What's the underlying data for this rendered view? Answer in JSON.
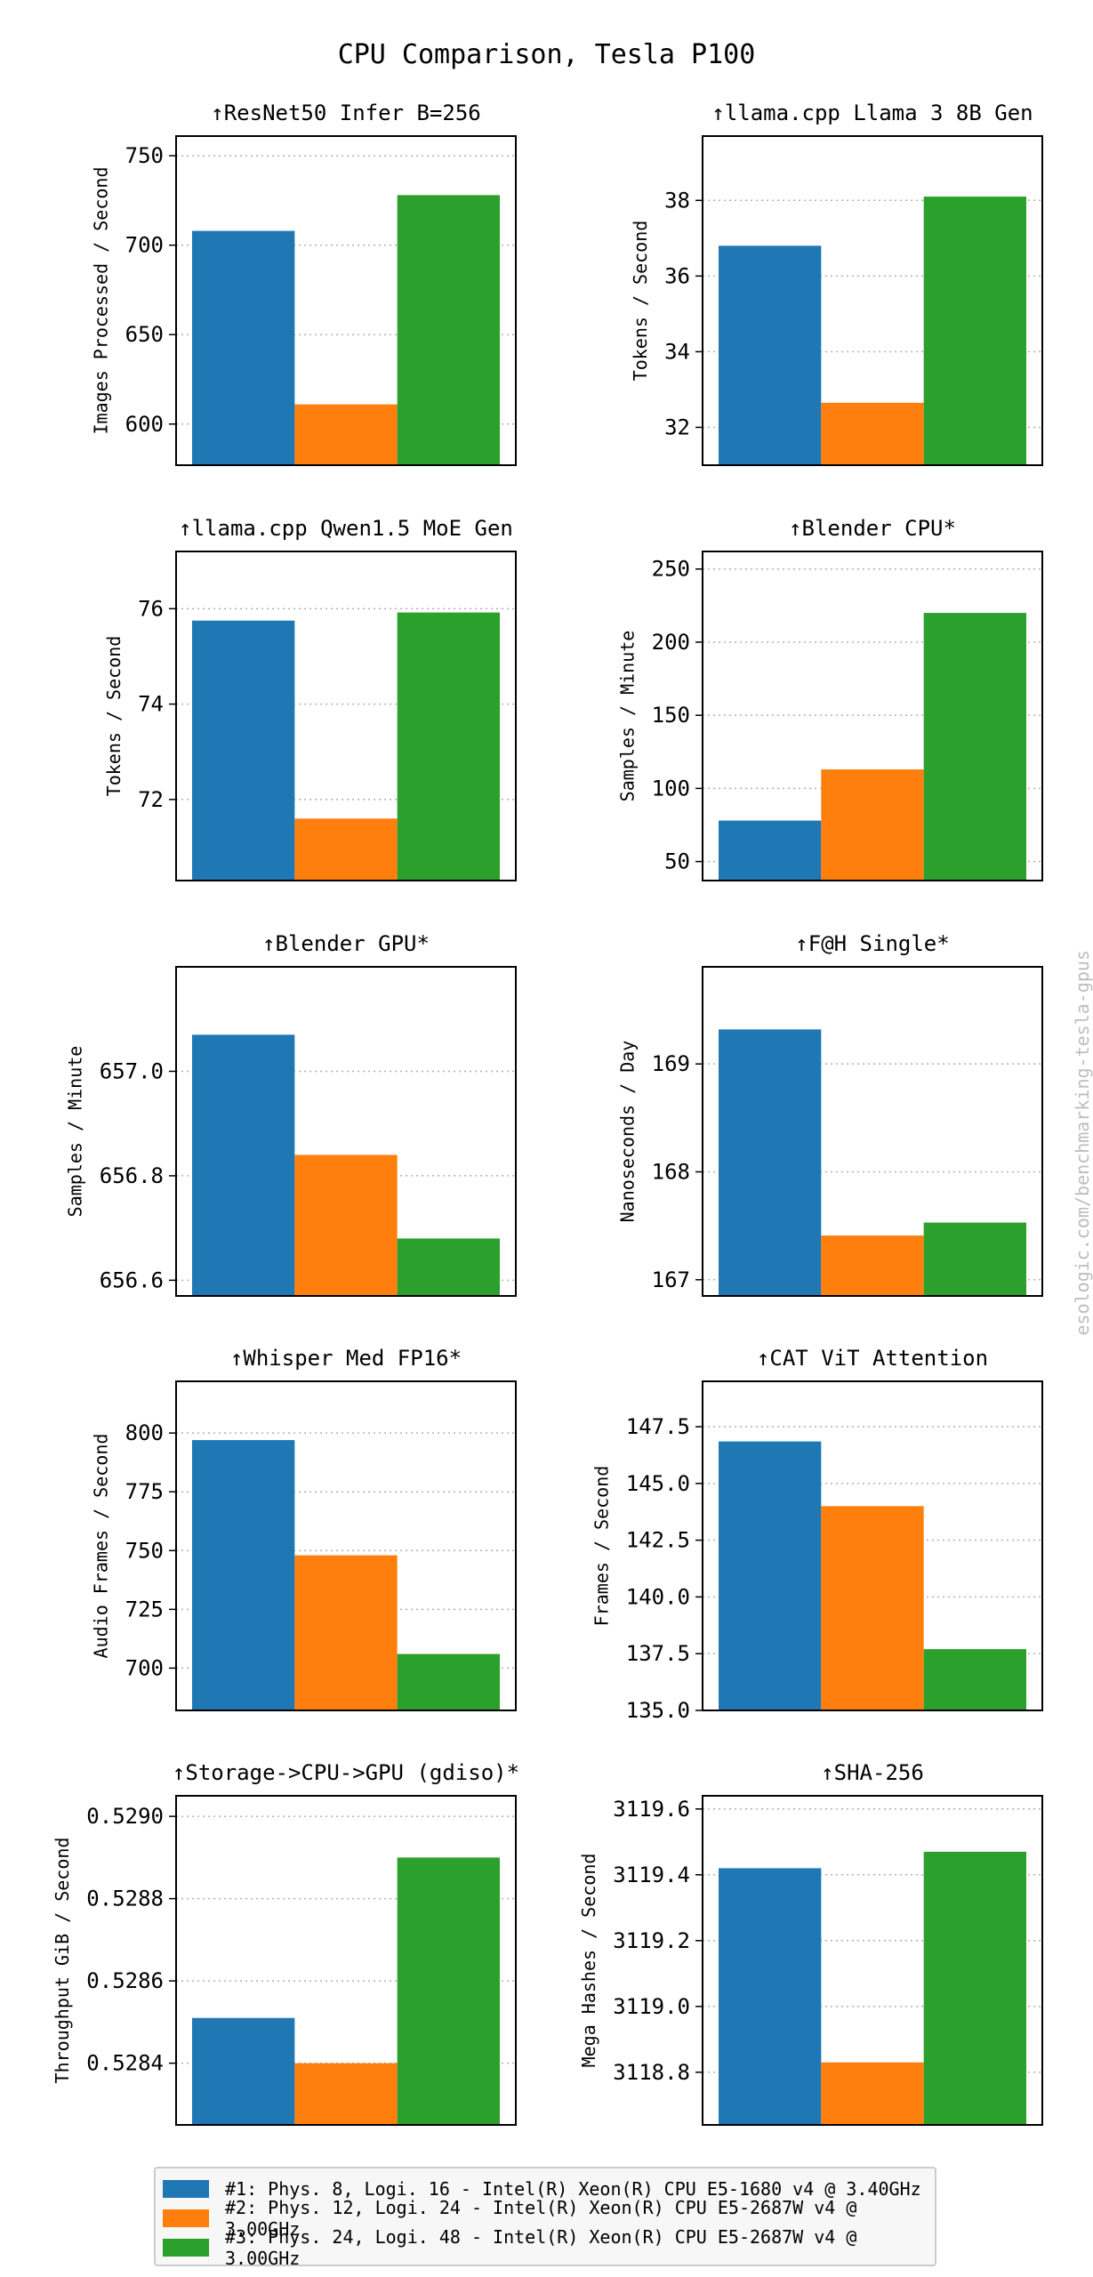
{
  "figure": {
    "title": "CPU Comparison, Tesla P100",
    "watermark": "esologic.com/benchmarking-tesla-gpus",
    "series_colors": [
      "#1f77b4",
      "#ff7f0e",
      "#2ca02c"
    ]
  },
  "legend": [
    {
      "label": "#1: Phys. 8, Logi. 16 - Intel(R) Xeon(R) CPU E5-1680 v4 @ 3.40GHz",
      "color": "#1f77b4"
    },
    {
      "label": "#2: Phys. 12, Logi. 24 - Intel(R) Xeon(R) CPU E5-2687W v4 @ 3.00GHz",
      "color": "#ff7f0e"
    },
    {
      "label": "#3: Phys. 24, Logi. 48 - Intel(R) Xeon(R) CPU E5-2687W v4 @ 3.00GHz",
      "color": "#2ca02c"
    }
  ],
  "chart_data": [
    {
      "type": "bar",
      "title": "↑ResNet50 Infer B=256",
      "ylabel": "Images Processed / Second",
      "ylim": [
        577,
        761
      ],
      "yticks": [
        600,
        650,
        700,
        750
      ],
      "tick_labels": [
        "600",
        "650",
        "700",
        "750"
      ],
      "series": [
        {
          "name": "#1",
          "values": [
            708
          ]
        },
        {
          "name": "#2",
          "values": [
            611
          ]
        },
        {
          "name": "#3",
          "values": [
            728
          ]
        }
      ]
    },
    {
      "type": "bar",
      "title": "↑llama.cpp Llama 3 8B Gen",
      "ylabel": "Tokens / Second",
      "ylim": [
        31.0,
        39.7
      ],
      "yticks": [
        32,
        34,
        36,
        38
      ],
      "tick_labels": [
        "32",
        "34",
        "36",
        "38"
      ],
      "series": [
        {
          "name": "#1",
          "values": [
            36.8
          ]
        },
        {
          "name": "#2",
          "values": [
            32.65
          ]
        },
        {
          "name": "#3",
          "values": [
            38.1
          ]
        }
      ]
    },
    {
      "type": "bar",
      "title": "↑llama.cpp Qwen1.5 MoE Gen",
      "ylabel": "Tokens / Second",
      "ylim": [
        70.3,
        77.2
      ],
      "yticks": [
        72,
        74,
        76
      ],
      "tick_labels": [
        "72",
        "74",
        "76"
      ],
      "series": [
        {
          "name": "#1",
          "values": [
            75.75
          ]
        },
        {
          "name": "#2",
          "values": [
            71.6
          ]
        },
        {
          "name": "#3",
          "values": [
            75.92
          ]
        }
      ]
    },
    {
      "type": "bar",
      "title": "↑Blender CPU*",
      "ylabel": "Samples / Minute",
      "ylim": [
        37,
        262
      ],
      "yticks": [
        50,
        100,
        150,
        200,
        250
      ],
      "tick_labels": [
        "50",
        "100",
        "150",
        "200",
        "250"
      ],
      "series": [
        {
          "name": "#1",
          "values": [
            78
          ]
        },
        {
          "name": "#2",
          "values": [
            113
          ]
        },
        {
          "name": "#3",
          "values": [
            220
          ]
        }
      ]
    },
    {
      "type": "bar",
      "title": "↑Blender GPU*",
      "ylabel": "Samples / Minute",
      "ylim": [
        656.57,
        657.2
      ],
      "yticks": [
        656.6,
        656.8,
        657.0
      ],
      "tick_labels": [
        "656.6",
        "656.8",
        "657.0"
      ],
      "series": [
        {
          "name": "#1",
          "values": [
            657.07
          ]
        },
        {
          "name": "#2",
          "values": [
            656.84
          ]
        },
        {
          "name": "#3",
          "values": [
            656.68
          ]
        }
      ]
    },
    {
      "type": "bar",
      "title": "↑F@H Single*",
      "ylabel": "Nanoseconds / Day",
      "ylim": [
        166.85,
        169.9
      ],
      "yticks": [
        167,
        168,
        169
      ],
      "tick_labels": [
        "167",
        "168",
        "169"
      ],
      "series": [
        {
          "name": "#1",
          "values": [
            169.32
          ]
        },
        {
          "name": "#2",
          "values": [
            167.41
          ]
        },
        {
          "name": "#3",
          "values": [
            167.53
          ]
        }
      ]
    },
    {
      "type": "bar",
      "title": "↑Whisper Med FP16*",
      "ylabel": "Audio Frames / Second",
      "ylim": [
        682,
        822
      ],
      "yticks": [
        700,
        725,
        750,
        775,
        800
      ],
      "tick_labels": [
        "700",
        "725",
        "750",
        "775",
        "800"
      ],
      "series": [
        {
          "name": "#1",
          "values": [
            797
          ]
        },
        {
          "name": "#2",
          "values": [
            748
          ]
        },
        {
          "name": "#3",
          "values": [
            706
          ]
        }
      ]
    },
    {
      "type": "bar",
      "title": "↑CAT ViT Attention",
      "ylabel": "Frames / Second",
      "ylim": [
        135.0,
        149.5
      ],
      "yticks": [
        135.0,
        137.5,
        140.0,
        142.5,
        145.0,
        147.5
      ],
      "tick_labels": [
        "135.0",
        "137.5",
        "140.0",
        "142.5",
        "145.0",
        "147.5"
      ],
      "series": [
        {
          "name": "#1",
          "values": [
            146.85
          ]
        },
        {
          "name": "#2",
          "values": [
            144.0
          ]
        },
        {
          "name": "#3",
          "values": [
            137.7
          ]
        }
      ]
    },
    {
      "type": "bar",
      "title": "↑Storage->CPU->GPU (gdiso)*",
      "ylabel": "Throughput GiB / Second",
      "ylim": [
        0.52825,
        0.52905
      ],
      "yticks": [
        0.5284,
        0.5286,
        0.5288,
        0.529
      ],
      "tick_labels": [
        "0.5284",
        "0.5286",
        "0.5288",
        "0.5290"
      ],
      "series": [
        {
          "name": "#1",
          "values": [
            0.52851
          ]
        },
        {
          "name": "#2",
          "values": [
            0.5284
          ]
        },
        {
          "name": "#3",
          "values": [
            0.5289
          ]
        }
      ]
    },
    {
      "type": "bar",
      "title": "↑SHA-256",
      "ylabel": "Mega Hashes / Second",
      "ylim": [
        3118.64,
        3119.64
      ],
      "yticks": [
        3118.8,
        3119.0,
        3119.2,
        3119.4,
        3119.6
      ],
      "tick_labels": [
        "3118.8",
        "3119.0",
        "3119.2",
        "3119.4",
        "3119.6"
      ],
      "series": [
        {
          "name": "#1",
          "values": [
            3119.42
          ]
        },
        {
          "name": "#2",
          "values": [
            3118.83
          ]
        },
        {
          "name": "#3",
          "values": [
            3119.47
          ]
        }
      ]
    }
  ]
}
